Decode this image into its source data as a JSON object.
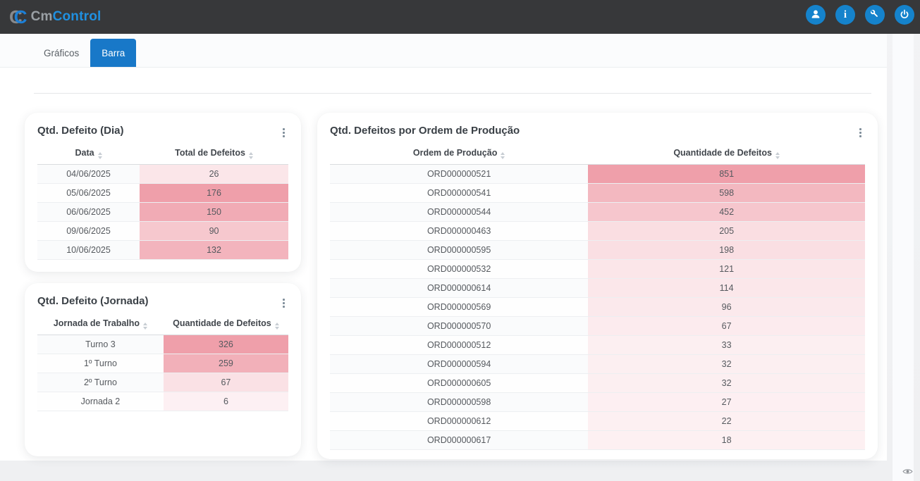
{
  "navbar": {
    "brand": {
      "cm": "Cm",
      "control": "Control",
      "icon": "cc-logo-icon"
    },
    "actions": [
      {
        "label": "user",
        "icon": "user-icon"
      },
      {
        "label": "info",
        "icon": "info-icon"
      },
      {
        "label": "tools",
        "icon": "wrench-icon"
      },
      {
        "label": "power",
        "icon": "power-icon"
      }
    ]
  },
  "tabs": [
    {
      "label": "Gráficos",
      "active": false
    },
    {
      "label": "Barra",
      "active": true
    }
  ],
  "colors": {
    "accent_blue": "#1878c8",
    "navbar_bg": "#37383a",
    "heat_low": "#fdf2f4",
    "heat_high": "#ef9faa"
  },
  "cards": [
    {
      "title": "Qtd. Defeito (Dia)",
      "columns": [
        "Data",
        "Total de Defeitos"
      ],
      "rows": [
        [
          "04/06/2025",
          26
        ],
        [
          "05/06/2025",
          176
        ],
        [
          "06/06/2025",
          150
        ],
        [
          "09/06/2025",
          90
        ],
        [
          "10/06/2025",
          132
        ]
      ]
    },
    {
      "title": "Qtd. Defeito (Jornada)",
      "columns": [
        "Jornada de Trabalho",
        "Quantidade de Defeitos"
      ],
      "rows": [
        [
          "Turno 3",
          326
        ],
        [
          "1º Turno",
          259
        ],
        [
          "2º Turno",
          67
        ],
        [
          "Jornada 2",
          6
        ]
      ]
    },
    {
      "title": "Qtd. Defeitos por Ordem de Produção",
      "columns": [
        "Ordem de Produção",
        "Quantidade de Defeitos"
      ],
      "rows": [
        [
          "ORD000000521",
          851
        ],
        [
          "ORD000000541",
          598
        ],
        [
          "ORD000000544",
          452
        ],
        [
          "ORD000000463",
          205
        ],
        [
          "ORD000000595",
          198
        ],
        [
          "ORD000000532",
          121
        ],
        [
          "ORD000000614",
          114
        ],
        [
          "ORD000000569",
          96
        ],
        [
          "ORD000000570",
          67
        ],
        [
          "ORD000000512",
          33
        ],
        [
          "ORD000000594",
          32
        ],
        [
          "ORD000000605",
          32
        ],
        [
          "ORD000000598",
          27
        ],
        [
          "ORD000000612",
          22
        ],
        [
          "ORD000000617",
          18
        ]
      ]
    }
  ],
  "footer": {
    "watermark_icon": "eye-icon"
  }
}
